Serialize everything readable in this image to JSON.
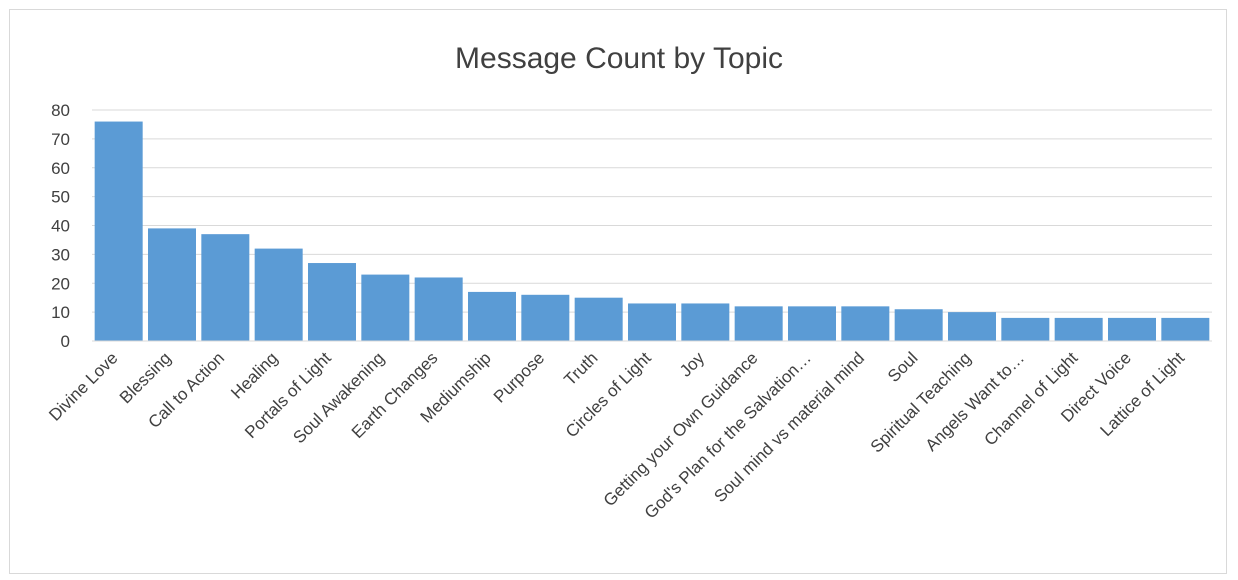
{
  "chart_data": {
    "type": "bar",
    "title": "Message Count by Topic",
    "xlabel": "",
    "ylabel": "",
    "ylim": [
      0,
      80
    ],
    "yticks": [
      0,
      10,
      20,
      30,
      40,
      50,
      60,
      70,
      80
    ],
    "grid": true,
    "legend": "none",
    "bar_color": "#5b9bd5",
    "categories": [
      "Divine Love",
      "Blessing",
      "Call to Action",
      "Healing",
      "Portals of Light",
      "Soul Awakening",
      "Earth Changes",
      "Mediumship",
      "Purpose",
      "Truth",
      "Circles of Light",
      "Joy",
      "Getting your Own Guidance",
      "God's Plan for the Salvation…",
      "Soul mind vs material mind",
      "Soul",
      "Spiritual Teaching",
      "Angels Want to…",
      "Channel of Light",
      "Direct Voice",
      "Lattice of Light"
    ],
    "values": [
      76,
      39,
      37,
      32,
      27,
      23,
      22,
      17,
      16,
      15,
      13,
      13,
      12,
      12,
      12,
      11,
      10,
      8,
      8,
      8,
      8
    ]
  }
}
